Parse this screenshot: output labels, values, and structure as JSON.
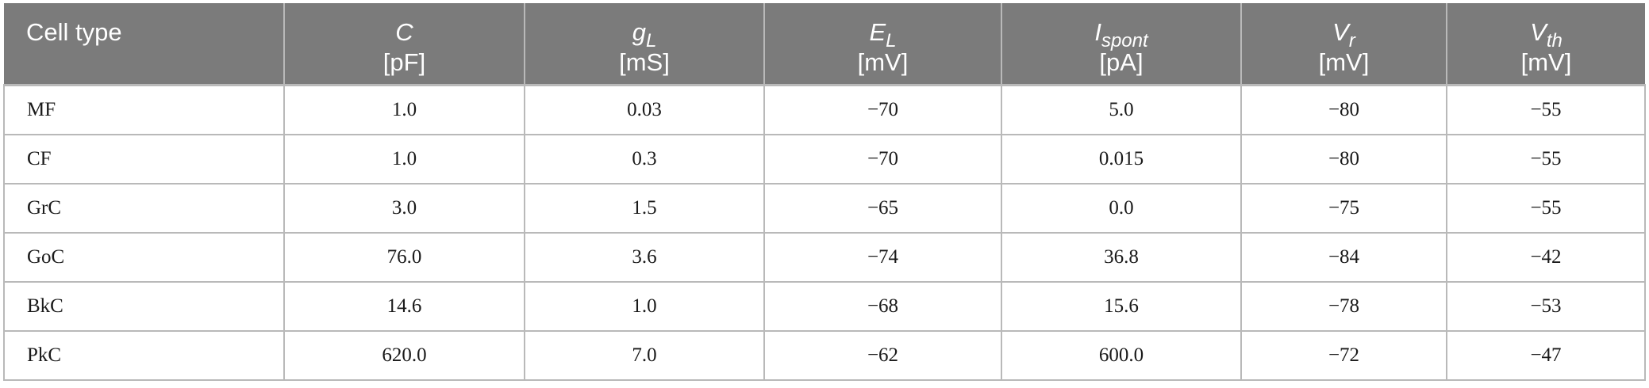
{
  "header": {
    "cell_type": "Cell type",
    "columns": [
      {
        "symbol": "C",
        "sub": "",
        "unit": "[pF]"
      },
      {
        "symbol": "g",
        "sub": "L",
        "unit": "[mS]"
      },
      {
        "symbol": "E",
        "sub": "L",
        "unit": "[mV]"
      },
      {
        "symbol": "I",
        "sub": "spont",
        "unit": "[pA]"
      },
      {
        "symbol": "V",
        "sub": "r",
        "unit": "[mV]"
      },
      {
        "symbol": "V",
        "sub": "th",
        "unit": "[mV]"
      }
    ]
  },
  "rows": [
    {
      "name": "MF",
      "values": [
        "1.0",
        "0.03",
        "−70",
        "5.0",
        "−80",
        "−55"
      ]
    },
    {
      "name": "CF",
      "values": [
        "1.0",
        "0.3",
        "−70",
        "0.015",
        "−80",
        "−55"
      ]
    },
    {
      "name": "GrC",
      "values": [
        "3.0",
        "1.5",
        "−65",
        "0.0",
        "−75",
        "−55"
      ]
    },
    {
      "name": "GoC",
      "values": [
        "76.0",
        "3.6",
        "−74",
        "36.8",
        "−84",
        "−42"
      ]
    },
    {
      "name": "BkC",
      "values": [
        "14.6",
        "1.0",
        "−68",
        "15.6",
        "−78",
        "−53"
      ]
    },
    {
      "name": "PkC",
      "values": [
        "620.0",
        "7.0",
        "−62",
        "600.0",
        "−72",
        "−47"
      ]
    }
  ]
}
